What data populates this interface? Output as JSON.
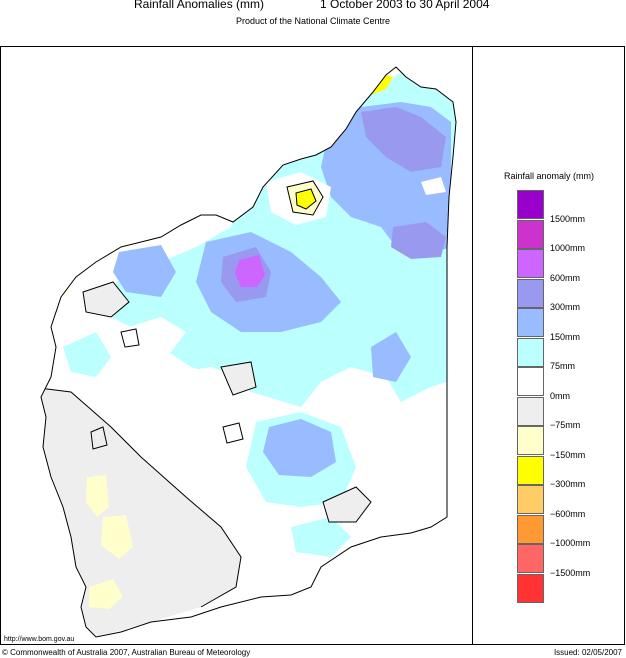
{
  "header": {
    "title_left": "Rainfall Anomalies (mm)",
    "title_right": "1 October 2003 to 30 April 2004",
    "subtitle": "Product of the National Climate Centre"
  },
  "legend": {
    "title": "Rainfall anomaly (mm)",
    "colors": [
      "#9a00cc",
      "#cc33cc",
      "#cc66ff",
      "#9999f0",
      "#99bbff",
      "#bbffff",
      "#ffffff",
      "#eeeeee",
      "#ffffcc",
      "#ffff00",
      "#ffcc66",
      "#ff9933",
      "#ff6666",
      "#ff3333"
    ],
    "ticks": [
      "1500mm",
      "1000mm",
      "600mm",
      "300mm",
      "150mm",
      "75mm",
      "0mm",
      "−75mm",
      "−150mm",
      "−300mm",
      "−600mm",
      "−1000mm",
      "−1500mm"
    ]
  },
  "footer": {
    "url": "http://www.bom.gov.au",
    "copyright": "© Commonwealth of Australia 2007, Australian Bureau of Meteorology",
    "issued": "Issued: 02/05/2007"
  }
}
